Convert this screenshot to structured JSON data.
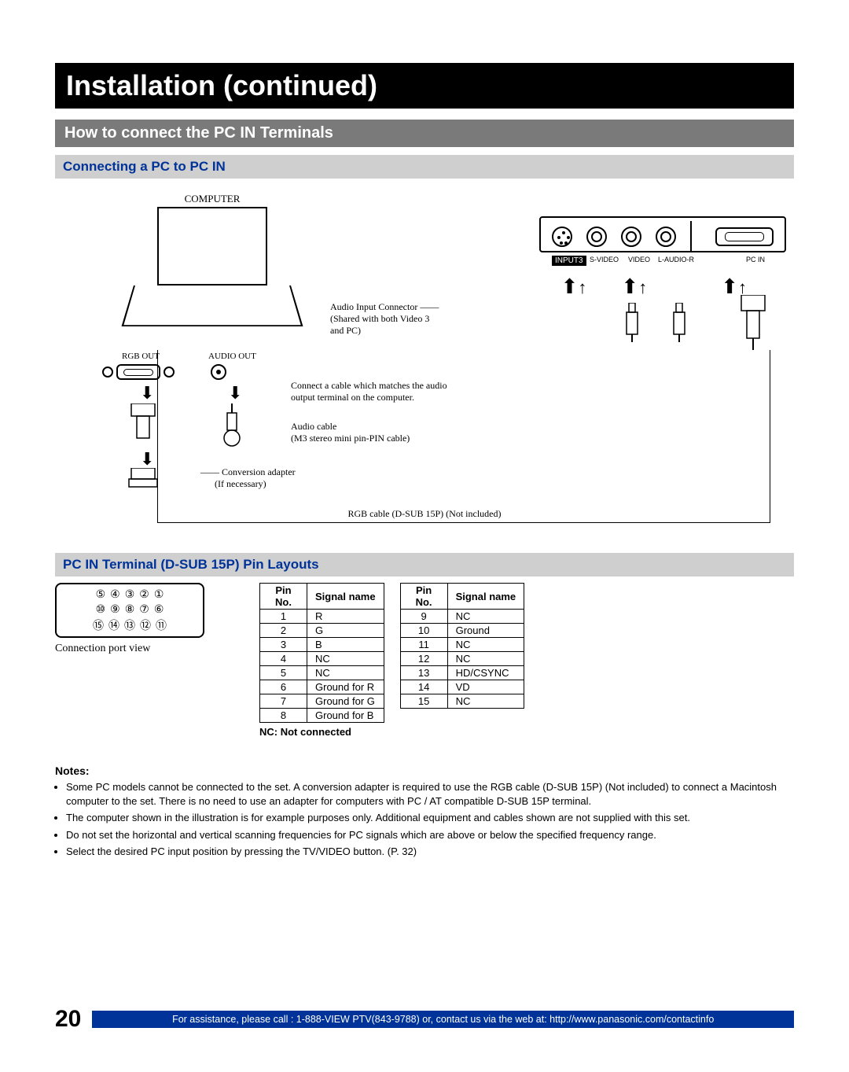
{
  "title": "Installation (continued)",
  "section1": "How to connect the PC IN Terminals",
  "subsection1": "Connecting a PC to PC IN",
  "diagram": {
    "computer_label": "COMPUTER",
    "rgb_out": "RGB OUT",
    "audio_out": "AUDIO OUT",
    "audio_input_line1": "Audio Input Connector",
    "audio_input_line2": "(Shared with both Video 3",
    "audio_input_line3": "and PC)",
    "connect_line1": "Connect a cable which matches the audio",
    "connect_line2": "output terminal on the computer.",
    "audio_cable_line1": "Audio cable",
    "audio_cable_line2": "(M3 stereo mini pin-PIN cable)",
    "conv_line1": "Conversion adapter",
    "conv_line2": "(If necessary)",
    "rgb_cable": "RGB cable (D-SUB 15P) (Not included)",
    "panel": {
      "input3": "INPUT3",
      "svideo": "S-VIDEO",
      "video": "VIDEO",
      "laudio": "L-AUDIO-R",
      "pcin": "PC IN"
    }
  },
  "subsection2": "PC IN Terminal (D-SUB 15P) Pin Layouts",
  "port_caption": "Connection port view",
  "pin_table": {
    "header_pin": "Pin No.",
    "header_signal": "Signal name",
    "left": [
      {
        "n": "1",
        "s": "R"
      },
      {
        "n": "2",
        "s": "G"
      },
      {
        "n": "3",
        "s": "B"
      },
      {
        "n": "4",
        "s": "NC"
      },
      {
        "n": "5",
        "s": "NC"
      },
      {
        "n": "6",
        "s": "Ground for R"
      },
      {
        "n": "7",
        "s": "Ground for G"
      },
      {
        "n": "8",
        "s": "Ground for B"
      }
    ],
    "right": [
      {
        "n": "9",
        "s": "NC"
      },
      {
        "n": "10",
        "s": "Ground"
      },
      {
        "n": "11",
        "s": "NC"
      },
      {
        "n": "12",
        "s": "NC"
      },
      {
        "n": "13",
        "s": "HD/CSYNC"
      },
      {
        "n": "14",
        "s": "VD"
      },
      {
        "n": "15",
        "s": "NC"
      }
    ]
  },
  "nc_note": "NC: Not connected",
  "notes_header": "Notes:",
  "notes": [
    "Some PC models cannot be connected to the set. A conversion adapter is required to use the RGB cable (D-SUB 15P) (Not included) to connect a Macintosh computer to the set. There is no need to use an adapter for computers with PC / AT compatible D-SUB 15P terminal.",
    "The computer shown in the illustration is for example purposes only. Additional equipment and cables shown are not supplied with this set.",
    "Do not set the horizontal and vertical scanning frequencies for PC signals which are above or below the specified frequency range.",
    "Select the desired PC input position by pressing the TV/VIDEO button. (P. 32)"
  ],
  "page_number": "20",
  "footer": "For assistance, please call : 1-888-VIEW PTV(843-9788) or, contact us via the web at: http://www.panasonic.com/contactinfo",
  "port_pins": {
    "row1": [
      "⑤",
      "④",
      "③",
      "②",
      "①"
    ],
    "row2": [
      "⑩",
      "⑨",
      "⑧",
      "⑦",
      "⑥"
    ],
    "row3": [
      "⑮",
      "⑭",
      "⑬",
      "⑫",
      "⑪"
    ]
  },
  "colors": {
    "title_bg": "#000000",
    "section_bg": "#7a7a7a",
    "subsection_bg": "#cfcfcf",
    "subsection_fg": "#003399",
    "footer_bg": "#003399"
  }
}
